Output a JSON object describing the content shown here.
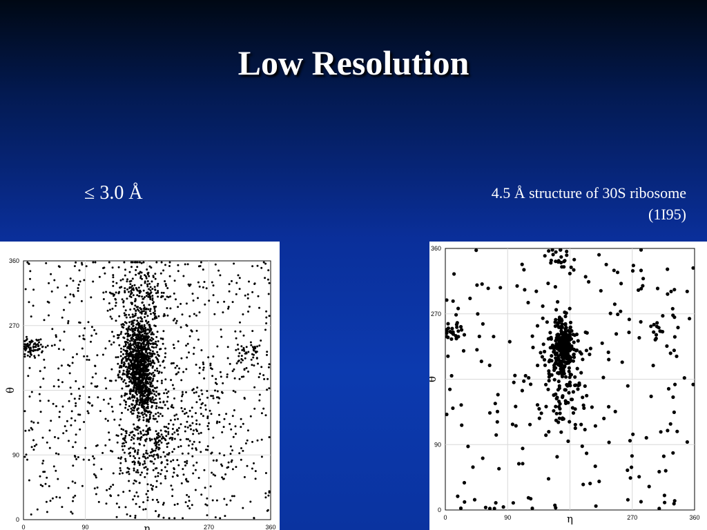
{
  "slide": {
    "title": "Low Resolution",
    "left_caption": "≤ 3.0 Å",
    "right_caption_line1": "4.5 Å structure of 30S ribosome",
    "right_caption_line2": "(1I95)"
  },
  "chart_data": [
    {
      "type": "scatter",
      "title": "",
      "xlabel": "η",
      "ylabel": "θ",
      "xlim": [
        0,
        360
      ],
      "ylim": [
        0,
        360
      ],
      "xticks": [
        "0",
        "90",
        "η",
        "270",
        "360"
      ],
      "yticks": [
        "0",
        "90",
        "θ",
        "270",
        "360"
      ],
      "grid": true,
      "point_color": "#000000",
      "density": "high",
      "clusters": [
        {
          "x": 168,
          "y": 225,
          "sx": 12,
          "sy": 28,
          "n": 900
        },
        {
          "x": 175,
          "y": 178,
          "sx": 10,
          "sy": 18,
          "n": 250
        },
        {
          "x": 170,
          "y": 315,
          "sx": 22,
          "sy": 28,
          "n": 220
        },
        {
          "x": 180,
          "y": 100,
          "sx": 25,
          "sy": 35,
          "n": 230
        },
        {
          "x": 12,
          "y": 240,
          "sx": 8,
          "sy": 6,
          "n": 70
        },
        {
          "x": 210,
          "y": 150,
          "sx": 45,
          "sy": 50,
          "n": 200
        },
        {
          "x": 330,
          "y": 230,
          "sx": 10,
          "sy": 12,
          "n": 45
        }
      ],
      "background_points": 750
    },
    {
      "type": "scatter",
      "title": "",
      "xlabel": "η",
      "ylabel": "θ",
      "xlim": [
        0,
        360
      ],
      "ylim": [
        0,
        360
      ],
      "xticks": [
        "0",
        "90",
        "η",
        "270",
        "360"
      ],
      "yticks": [
        "0",
        "90",
        "θ",
        "270",
        "360"
      ],
      "grid": true,
      "point_color": "#000000",
      "density": "low",
      "clusters": [
        {
          "x": 170,
          "y": 228,
          "sx": 8,
          "sy": 18,
          "n": 230
        },
        {
          "x": 168,
          "y": 170,
          "sx": 18,
          "sy": 35,
          "n": 110
        },
        {
          "x": 165,
          "y": 345,
          "sx": 8,
          "sy": 6,
          "n": 18
        },
        {
          "x": 15,
          "y": 245,
          "sx": 10,
          "sy": 6,
          "n": 20
        },
        {
          "x": 320,
          "y": 245,
          "sx": 15,
          "sy": 10,
          "n": 15
        }
      ],
      "background_points": 210
    }
  ]
}
